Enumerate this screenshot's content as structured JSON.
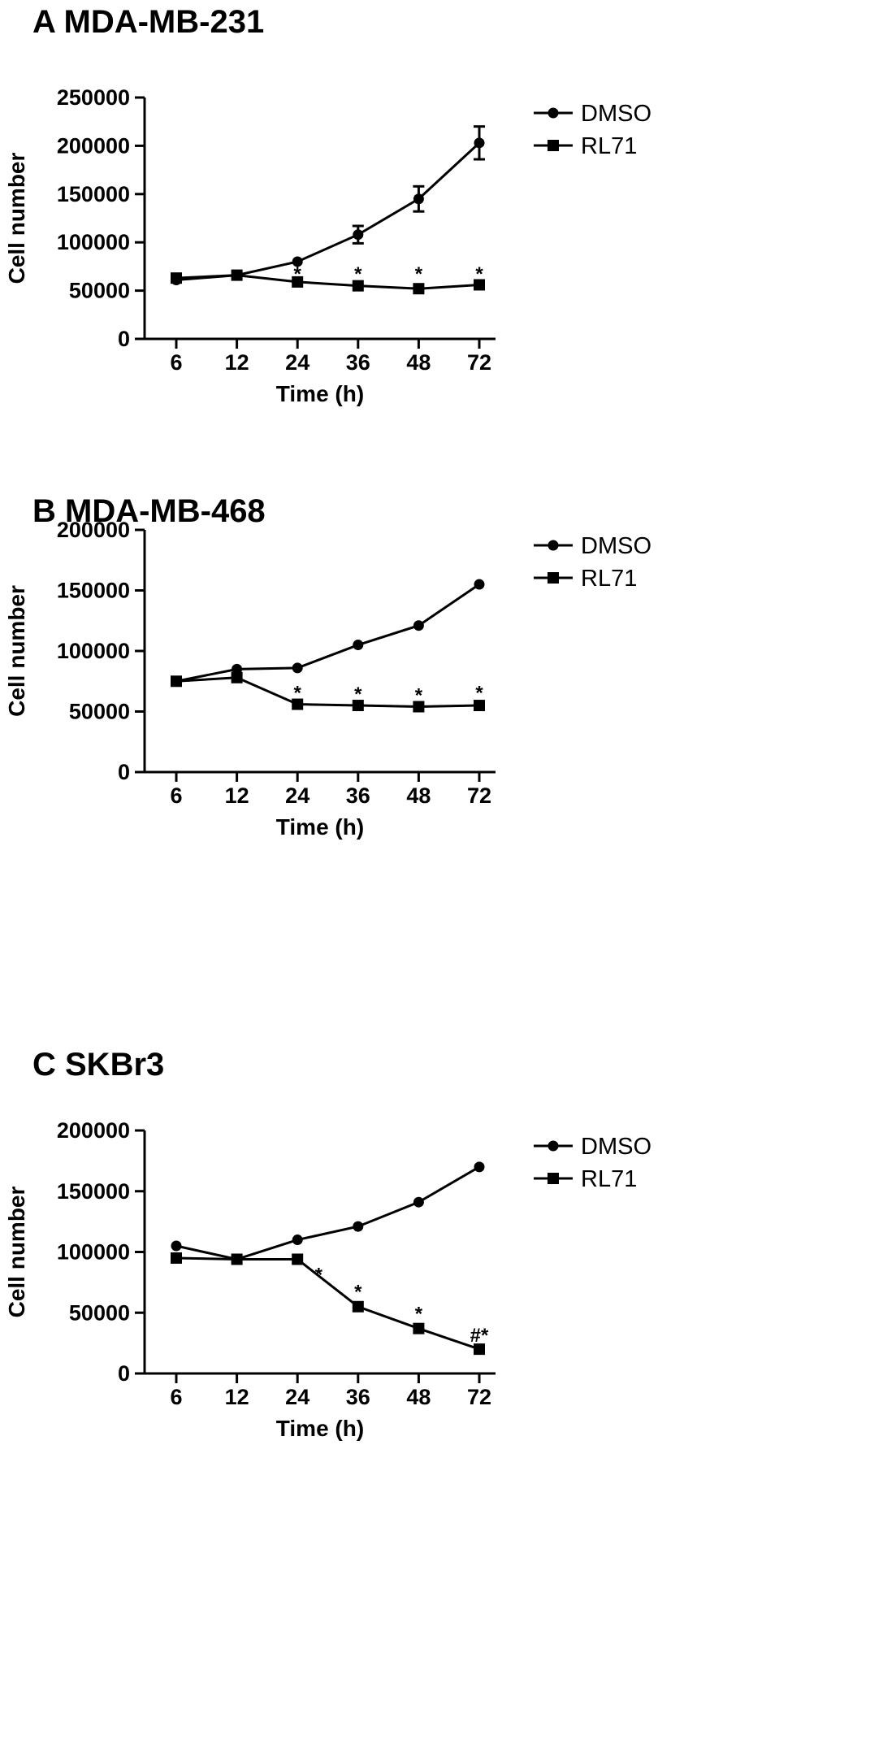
{
  "chart_data": [
    {
      "type": "line",
      "panel_letter": "A",
      "title": "MDA-MB-231",
      "xlabel": "Time (h)",
      "ylabel": "Cell number",
      "categories": [
        "6",
        "12",
        "24",
        "36",
        "48",
        "72"
      ],
      "ylim": [
        0,
        250000
      ],
      "yticks": [
        "0",
        "50000",
        "100000",
        "150000",
        "200000",
        "250000"
      ],
      "legend_position": "top-right",
      "series": [
        {
          "name": "DMSO",
          "marker": "circle",
          "values": [
            61000,
            66000,
            80000,
            108000,
            145000,
            203000
          ],
          "errors": [
            3000,
            2000,
            4000,
            9000,
            13000,
            17000
          ]
        },
        {
          "name": "RL71",
          "marker": "square",
          "values": [
            63000,
            66000,
            59000,
            55000,
            52000,
            56000
          ],
          "errors": [
            2000,
            2000,
            2000,
            3000,
            3000,
            2000
          ]
        }
      ],
      "annotations": [
        {
          "x": "24",
          "text": "*",
          "y": 68000
        },
        {
          "x": "36",
          "text": "*",
          "y": 68000
        },
        {
          "x": "48",
          "text": "*",
          "y": 68000
        },
        {
          "x": "72",
          "text": "*",
          "y": 68000
        }
      ]
    },
    {
      "type": "line",
      "panel_letter": "B",
      "title": "MDA-MB-468",
      "xlabel": "Time (h)",
      "ylabel": "Cell number",
      "categories": [
        "6",
        "12",
        "24",
        "36",
        "48",
        "72"
      ],
      "ylim": [
        0,
        200000
      ],
      "yticks": [
        "0",
        "50000",
        "100000",
        "150000",
        "200000"
      ],
      "legend_position": "top-right",
      "series": [
        {
          "name": "DMSO",
          "marker": "circle",
          "values": [
            75000,
            85000,
            86000,
            105000,
            121000,
            155000
          ],
          "errors": [
            1500,
            1500,
            1500,
            1500,
            1500,
            1500
          ]
        },
        {
          "name": "RL71",
          "marker": "square",
          "values": [
            75000,
            78000,
            56000,
            55000,
            54000,
            55000
          ],
          "errors": [
            1500,
            1500,
            1500,
            1500,
            1500,
            1500
          ]
        }
      ],
      "annotations": [
        {
          "x": "24",
          "text": "*",
          "y": 66000
        },
        {
          "x": "36",
          "text": "*",
          "y": 65000
        },
        {
          "x": "48",
          "text": "*",
          "y": 64000
        },
        {
          "x": "72",
          "text": "*",
          "y": 66000
        }
      ]
    },
    {
      "type": "line",
      "panel_letter": "C",
      "title": "SKBr3",
      "xlabel": "Time (h)",
      "ylabel": "Cell number",
      "categories": [
        "6",
        "12",
        "24",
        "36",
        "48",
        "72"
      ],
      "ylim": [
        0,
        200000
      ],
      "yticks": [
        "0",
        "50000",
        "100000",
        "150000",
        "200000"
      ],
      "legend_position": "top-right",
      "series": [
        {
          "name": "DMSO",
          "marker": "circle",
          "values": [
            105000,
            94000,
            110000,
            121000,
            141000,
            170000
          ],
          "errors": [
            1500,
            1500,
            1500,
            1500,
            1500,
            3000
          ]
        },
        {
          "name": "RL71",
          "marker": "square",
          "values": [
            95000,
            94000,
            94000,
            55000,
            37000,
            20000
          ],
          "errors": [
            1500,
            1500,
            1500,
            1500,
            1500,
            1500
          ]
        }
      ],
      "annotations": [
        {
          "x": "24",
          "text": "*",
          "y": 82000,
          "dx": 0.35
        },
        {
          "x": "36",
          "text": "*",
          "y": 68000
        },
        {
          "x": "48",
          "text": "*",
          "y": 50000
        },
        {
          "x": "72",
          "text": "#*",
          "y": 32000
        }
      ]
    }
  ]
}
